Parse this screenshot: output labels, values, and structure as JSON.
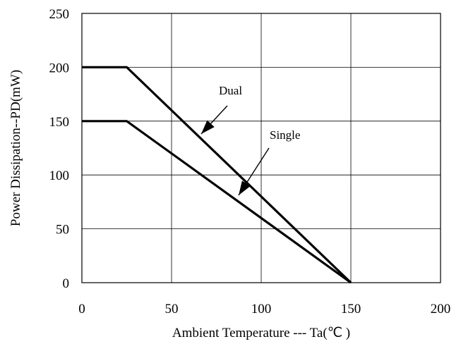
{
  "chart_data": {
    "type": "line",
    "title": "",
    "xlabel": "Ambient Temperature --- Ta(℃ )",
    "ylabel": "Power Dissipation--PD(mW)",
    "xlim": [
      0,
      200
    ],
    "ylim": [
      0,
      250
    ],
    "xticks": [
      "0",
      "50",
      "100",
      "150",
      "200"
    ],
    "yticks": [
      "0",
      "50",
      "100",
      "150",
      "200",
      "250"
    ],
    "grid": true,
    "legend": "none",
    "series": [
      {
        "name": "Dual",
        "x": [
          0,
          25,
          150
        ],
        "y": [
          200,
          200,
          0
        ],
        "color": "#000000"
      },
      {
        "name": "Single",
        "x": [
          0,
          25,
          150
        ],
        "y": [
          150,
          150,
          0
        ],
        "color": "#000000"
      }
    ],
    "annotations": [
      {
        "text": "Dual",
        "arrow_to": [
          66,
          137
        ]
      },
      {
        "text": "Single",
        "arrow_to": [
          87,
          80
        ]
      }
    ]
  }
}
